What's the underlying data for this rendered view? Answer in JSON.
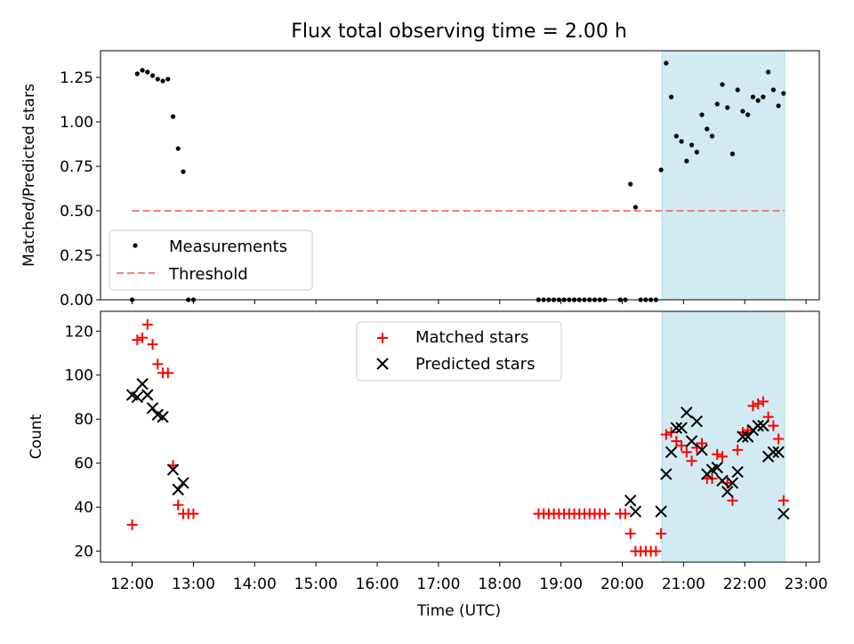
{
  "title": "Flux total observing time = 2.00 h",
  "colors": {
    "measurement": "#000000",
    "threshold": "#f08080",
    "matched": "#ff0000",
    "predicted": "#000000",
    "highlight": "#add8e6"
  },
  "chart_data": [
    {
      "type": "scatter",
      "panel": "top",
      "ylabel": "Matched/Predicted stars",
      "ylim": [
        0,
        1.4
      ],
      "yticks": [
        0,
        0.25,
        0.5,
        0.75,
        1.0,
        1.25
      ],
      "ytick_labels": [
        "0.00",
        "0.25",
        "0.50",
        "0.75",
        "1.00",
        "1.25"
      ],
      "xlim": [
        "11:29",
        "23:13"
      ],
      "highlight_span": [
        "20:39",
        "22:39"
      ],
      "legend": {
        "placement": "lower-left",
        "entries": [
          {
            "label": "Measurements",
            "marker": "dot"
          },
          {
            "label": "Threshold",
            "marker": "dashed-line"
          }
        ]
      },
      "threshold": {
        "name": "Threshold",
        "value": 0.5,
        "x_range": [
          "12:00",
          "22:39"
        ]
      },
      "series": [
        {
          "name": "Measurements",
          "marker": "dot",
          "points": [
            [
              "12:00",
              0.0
            ],
            [
              "12:05",
              1.27
            ],
            [
              "12:10",
              1.29
            ],
            [
              "12:15",
              1.28
            ],
            [
              "12:20",
              1.26
            ],
            [
              "12:25",
              1.24
            ],
            [
              "12:30",
              1.23
            ],
            [
              "12:35",
              1.24
            ],
            [
              "12:40",
              1.03
            ],
            [
              "12:45",
              0.85
            ],
            [
              "12:50",
              0.72
            ],
            [
              "12:55",
              0.0
            ],
            [
              "13:00",
              0.0
            ],
            [
              "18:38",
              0.0
            ],
            [
              "18:43",
              0.0
            ],
            [
              "18:48",
              0.0
            ],
            [
              "18:53",
              0.0
            ],
            [
              "18:58",
              0.0
            ],
            [
              "19:03",
              0.0
            ],
            [
              "19:08",
              0.0
            ],
            [
              "19:13",
              0.0
            ],
            [
              "19:18",
              0.0
            ],
            [
              "19:23",
              0.0
            ],
            [
              "19:28",
              0.0
            ],
            [
              "19:33",
              0.0
            ],
            [
              "19:38",
              0.0
            ],
            [
              "19:43",
              0.0
            ],
            [
              "19:58",
              0.0
            ],
            [
              "20:03",
              0.0
            ],
            [
              "20:08",
              0.65
            ],
            [
              "20:13",
              0.52
            ],
            [
              "20:18",
              0.0
            ],
            [
              "20:23",
              0.0
            ],
            [
              "20:28",
              0.0
            ],
            [
              "20:33",
              0.0
            ],
            [
              "20:38",
              0.73
            ],
            [
              "20:43",
              1.33
            ],
            [
              "20:48",
              1.14
            ],
            [
              "20:53",
              0.92
            ],
            [
              "20:58",
              0.89
            ],
            [
              "21:03",
              0.78
            ],
            [
              "21:08",
              0.87
            ],
            [
              "21:13",
              0.83
            ],
            [
              "21:18",
              1.04
            ],
            [
              "21:23",
              0.96
            ],
            [
              "21:28",
              0.92
            ],
            [
              "21:33",
              1.1
            ],
            [
              "21:38",
              1.21
            ],
            [
              "21:43",
              1.08
            ],
            [
              "21:48",
              0.82
            ],
            [
              "21:53",
              1.18
            ],
            [
              "21:58",
              1.06
            ],
            [
              "22:03",
              1.04
            ],
            [
              "22:08",
              1.14
            ],
            [
              "22:13",
              1.12
            ],
            [
              "22:18",
              1.14
            ],
            [
              "22:23",
              1.28
            ],
            [
              "22:28",
              1.18
            ],
            [
              "22:33",
              1.09
            ],
            [
              "22:38",
              1.16
            ]
          ]
        }
      ]
    },
    {
      "type": "scatter",
      "panel": "bottom",
      "xlabel": "Time (UTC)",
      "ylabel": "Count",
      "ylim": [
        15,
        129
      ],
      "yticks": [
        20,
        40,
        60,
        80,
        100,
        120
      ],
      "ytick_labels": [
        "20",
        "40",
        "60",
        "80",
        "100",
        "120"
      ],
      "xlim": [
        "11:29",
        "23:13"
      ],
      "xticks": [
        "12:00",
        "13:00",
        "14:00",
        "15:00",
        "16:00",
        "17:00",
        "18:00",
        "19:00",
        "20:00",
        "21:00",
        "22:00",
        "23:00"
      ],
      "highlight_span": [
        "20:39",
        "22:39"
      ],
      "legend": {
        "placement": "upper-center",
        "entries": [
          {
            "label": "Matched stars",
            "marker": "plus"
          },
          {
            "label": "Predicted stars",
            "marker": "x"
          }
        ]
      },
      "series": [
        {
          "name": "Matched stars",
          "marker": "plus",
          "points": [
            [
              "12:00",
              32
            ],
            [
              "12:05",
              116
            ],
            [
              "12:10",
              117
            ],
            [
              "12:15",
              123
            ],
            [
              "12:20",
              114
            ],
            [
              "12:25",
              105
            ],
            [
              "12:30",
              101
            ],
            [
              "12:35",
              101
            ],
            [
              "12:40",
              59
            ],
            [
              "12:45",
              41
            ],
            [
              "12:50",
              37
            ],
            [
              "12:55",
              37
            ],
            [
              "13:00",
              37
            ],
            [
              "18:38",
              37
            ],
            [
              "18:43",
              37
            ],
            [
              "18:48",
              37
            ],
            [
              "18:53",
              37
            ],
            [
              "18:58",
              37
            ],
            [
              "19:03",
              37
            ],
            [
              "19:08",
              37
            ],
            [
              "19:13",
              37
            ],
            [
              "19:18",
              37
            ],
            [
              "19:23",
              37
            ],
            [
              "19:28",
              37
            ],
            [
              "19:33",
              37
            ],
            [
              "19:38",
              37
            ],
            [
              "19:43",
              37
            ],
            [
              "19:58",
              37
            ],
            [
              "20:03",
              37
            ],
            [
              "20:08",
              28
            ],
            [
              "20:13",
              20
            ],
            [
              "20:18",
              20
            ],
            [
              "20:23",
              20
            ],
            [
              "20:28",
              20
            ],
            [
              "20:33",
              20
            ],
            [
              "20:38",
              28
            ],
            [
              "20:43",
              73
            ],
            [
              "20:48",
              74
            ],
            [
              "20:53",
              70
            ],
            [
              "20:58",
              68
            ],
            [
              "21:03",
              65
            ],
            [
              "21:08",
              61
            ],
            [
              "21:13",
              67
            ],
            [
              "21:18",
              69
            ],
            [
              "21:23",
              53
            ],
            [
              "21:28",
              53
            ],
            [
              "21:33",
              64
            ],
            [
              "21:38",
              63
            ],
            [
              "21:43",
              51
            ],
            [
              "21:48",
              43
            ],
            [
              "21:53",
              66
            ],
            [
              "21:58",
              74
            ],
            [
              "22:03",
              75
            ],
            [
              "22:08",
              86
            ],
            [
              "22:13",
              87
            ],
            [
              "22:18",
              88
            ],
            [
              "22:23",
              81
            ],
            [
              "22:28",
              77
            ],
            [
              "22:33",
              71
            ],
            [
              "22:38",
              43
            ]
          ]
        },
        {
          "name": "Predicted stars",
          "marker": "x",
          "points": [
            [
              "12:00",
              91
            ],
            [
              "12:05",
              90
            ],
            [
              "12:10",
              96
            ],
            [
              "12:15",
              91
            ],
            [
              "12:20",
              85
            ],
            [
              "12:25",
              82
            ],
            [
              "12:30",
              81
            ],
            [
              "12:40",
              57
            ],
            [
              "12:45",
              48
            ],
            [
              "12:50",
              51
            ],
            [
              "20:08",
              43
            ],
            [
              "20:13",
              38
            ],
            [
              "20:38",
              38
            ],
            [
              "20:43",
              55
            ],
            [
              "20:48",
              65
            ],
            [
              "20:53",
              76
            ],
            [
              "20:58",
              76
            ],
            [
              "21:03",
              83
            ],
            [
              "21:08",
              70
            ],
            [
              "21:13",
              79
            ],
            [
              "21:18",
              66
            ],
            [
              "21:23",
              55
            ],
            [
              "21:28",
              57
            ],
            [
              "21:33",
              58
            ],
            [
              "21:38",
              52
            ],
            [
              "21:43",
              47
            ],
            [
              "21:48",
              51
            ],
            [
              "21:53",
              56
            ],
            [
              "21:58",
              72
            ],
            [
              "22:03",
              72
            ],
            [
              "22:08",
              75
            ],
            [
              "22:13",
              77
            ],
            [
              "22:18",
              77
            ],
            [
              "22:23",
              63
            ],
            [
              "22:28",
              65
            ],
            [
              "22:33",
              65
            ],
            [
              "22:38",
              37
            ]
          ]
        }
      ]
    }
  ]
}
